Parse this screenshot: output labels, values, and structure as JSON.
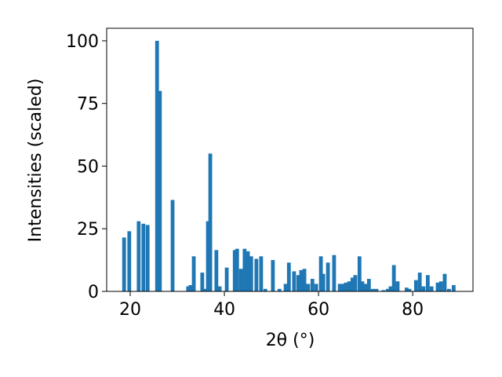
{
  "chart_data": {
    "type": "bar",
    "xlabel": "2θ (°)",
    "ylabel": "Intensities (scaled)",
    "x": [
      18.7,
      19.8,
      21.8,
      22.8,
      23.7,
      25.7,
      26.3,
      29.0,
      32.3,
      32.8,
      33.5,
      35.3,
      36.0,
      36.5,
      37.0,
      38.3,
      39.0,
      40.5,
      42.2,
      42.7,
      43.5,
      44.3,
      45.0,
      45.7,
      46.8,
      47.8,
      48.7,
      50.3,
      51.7,
      53.0,
      53.7,
      54.8,
      55.7,
      56.3,
      57.0,
      57.8,
      58.7,
      59.5,
      60.5,
      61.0,
      62.0,
      63.3,
      64.5,
      65.2,
      65.8,
      66.5,
      67.2,
      67.8,
      68.7,
      69.3,
      70.0,
      70.7,
      71.5,
      72.3,
      73.8,
      74.7,
      75.3,
      76.0,
      76.8,
      78.7,
      79.3,
      80.7,
      81.5,
      82.3,
      83.2,
      84.0,
      85.3,
      86.0,
      86.8,
      87.7,
      88.7
    ],
    "values": [
      21.5,
      24,
      28,
      27,
      26.5,
      100,
      80,
      36.5,
      2,
      2.5,
      14,
      7.5,
      1,
      28,
      55,
      16.5,
      2,
      9.5,
      16.5,
      17,
      9,
      17,
      16,
      14,
      13,
      14,
      1,
      12.5,
      1,
      3,
      11.5,
      8,
      6.5,
      8.5,
      9,
      3,
      5,
      3,
      14,
      7,
      11.5,
      14.5,
      3,
      3,
      3.5,
      4,
      5.5,
      6.5,
      14,
      4,
      3,
      5,
      1,
      1,
      0.5,
      1,
      2,
      10.5,
      4,
      1.5,
      1,
      4.5,
      7.5,
      2,
      6.5,
      2,
      3.5,
      4,
      7,
      1,
      2.5
    ],
    "color": "#1f77b4",
    "xlim": [
      15,
      92.8
    ],
    "xticks": [
      20,
      40,
      60,
      80
    ],
    "ylim": [
      0,
      105
    ],
    "yticks": [
      0,
      25,
      50,
      75,
      100
    ]
  }
}
